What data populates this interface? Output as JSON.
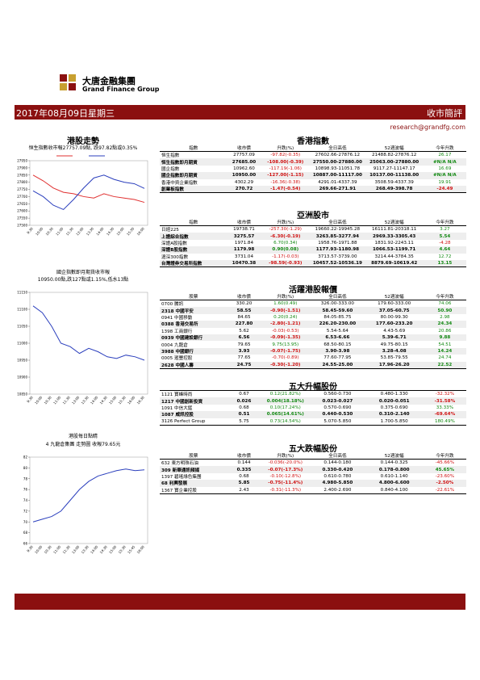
{
  "header": {
    "company_cn": "大唐金融集團",
    "company_en": "Grand Finance Group",
    "date": "2017年08月09日星期三",
    "report": "收市簡評",
    "email": "research@grandfg.com"
  },
  "left": {
    "title": "港股走勢",
    "section2": "港股每日點睛"
  },
  "chart_data": [
    {
      "type": "line",
      "title_lines": [
        "恒生指數收市報27757.09點, 跌97.82點或0.35%"
      ],
      "categories": [
        "9:30",
        "10:00",
        "10:30",
        "11:00",
        "11:30",
        "12:00",
        "13:30",
        "14:00",
        "14:30",
        "15:00",
        "15:30",
        "16:00"
      ],
      "series": [
        {
          "color": "#e03030",
          "values": [
            27850,
            27810,
            27760,
            27730,
            27720,
            27700,
            27690,
            27720,
            27700,
            27690,
            27680,
            27660
          ]
        },
        {
          "color": "#2b3fbd",
          "values": [
            27740,
            27700,
            27640,
            27610,
            27680,
            27760,
            27830,
            27850,
            27820,
            27800,
            27790,
            27757
          ]
        }
      ],
      "ylim": [
        27500,
        27950
      ],
      "yticks": [
        27500,
        27550,
        27600,
        27650,
        27700,
        27750,
        27800,
        27850,
        27900,
        27950
      ]
    },
    {
      "type": "line",
      "title_lines": [
        "國企指數即月期貨收市報",
        "10950.00點,跌127點或1.15%,低水13點"
      ],
      "categories": [
        "9:30",
        "10:00",
        "10:30",
        "11:00",
        "11:30",
        "13:00",
        "13:30",
        "14:00",
        "14:30",
        "15:00",
        "15:30",
        "16:00",
        "16:30"
      ],
      "series": [
        {
          "color": "#2b3fbd",
          "values": [
            11110,
            11090,
            11050,
            11000,
            10990,
            10970,
            10985,
            10975,
            10960,
            10955,
            10965,
            10960,
            10950
          ]
        }
      ],
      "ylim": [
        10850,
        11150
      ],
      "yticks": [
        10850,
        10900,
        10950,
        11000,
        11050,
        11100,
        11150
      ]
    },
    {
      "type": "line",
      "title_lines": [
        "4 九龍倉集團 走勢圖 收報79.65元"
      ],
      "categories": [
        "9:30",
        "10:00",
        "10:30",
        "11:00",
        "11:30",
        "13:00",
        "13:30",
        "14:00",
        "14:30",
        "15:00",
        "15:30",
        "15:45",
        "16:00"
      ],
      "series": [
        {
          "color": "#2b3fbd",
          "values": [
            70,
            70.5,
            71,
            72,
            74,
            76,
            77.5,
            78.5,
            79,
            79.5,
            79.8,
            79.5,
            79.65
          ]
        }
      ],
      "ylim": [
        66,
        82
      ],
      "yticks": [
        66,
        68,
        70,
        72,
        74,
        76,
        78,
        80,
        82
      ]
    }
  ],
  "tables": [
    {
      "title": "香港指數",
      "headers": [
        "指數",
        "收市價",
        "升跌(%)",
        "全日高低",
        "52週波幅",
        "今年升跌"
      ],
      "rows": [
        [
          "恒生指數",
          "27757.09",
          "-97.82(-0.35)",
          "27602.66-27876.12",
          "21488.82-27876.12",
          "26.17"
        ],
        [
          "恒生指數即月期貨",
          "27685.00",
          "-108.00(-0.39)",
          "27550.00-27880.00",
          "25063.00-27880.00",
          "#N/A N/A"
        ],
        [
          "國企指數",
          "10962.60",
          "-117.19(-1.06)",
          "10898.93-11051.78",
          "9117.27-11147.17",
          "16.69"
        ],
        [
          "國企指數即月期貨",
          "10950.00",
          "-127.00(-1.15)",
          "10887.00-11117.00",
          "10137.00-11138.00",
          "#N/A N/A"
        ],
        [
          "香港中資企業指數",
          "4302.29",
          "-16.36(-0.38)",
          "4291.01-4337.39",
          "3508.59-4337.39",
          "19.91"
        ],
        [
          "創業板指數",
          "270.72",
          "-1.47(-0.54)",
          "269.66-271.91",
          "268.49-398.78",
          "-24.49"
        ]
      ]
    },
    {
      "title": "亞洲股市",
      "headers": [
        "指數",
        "收市價",
        "升跌(%)",
        "全日高低",
        "52週波幅",
        "今年升跌"
      ],
      "rows": [
        [
          "日經225",
          "19738.71",
          "-257.30(-1.29)",
          "19660.22-19945.28",
          "16111.81-20318.11",
          "3.27"
        ],
        [
          "上證綜合指數",
          "3275.57",
          "-6.30(-0.19)",
          "3263.85-3277.94",
          "2969.33-3305.43",
          "5.54"
        ],
        [
          "深證A股指數",
          "1971.84",
          "6.70(0.34)",
          "1958.76-1971.88",
          "1831.92-2243.11",
          "-4.28"
        ],
        [
          "深證B股指數",
          "1179.98",
          "0.90(0.08)",
          "1177.93-1180.98",
          "1066.53-1199.71",
          "4.64"
        ],
        [
          "滬深300指數",
          "3731.04",
          "-1.17(-0.03)",
          "3713.57-3739.00",
          "3214.44-3784.35",
          "12.72"
        ],
        [
          "台灣證券交易所指數",
          "10470.38",
          "-98.59(-0.93)",
          "10457.52-10536.19",
          "8879.69-10619.42",
          "13.15"
        ]
      ]
    },
    {
      "title": "活躍港股報價",
      "headers": [
        "股票",
        "收市價",
        "升跌(%)",
        "全日高低",
        "52週波幅",
        "今年升跌"
      ],
      "rows": [
        [
          "0700 騰訊",
          "330.20",
          "1.60(0.49)",
          "326.00-333.00",
          "179.60-333.00",
          "74.06"
        ],
        [
          "2318 中國平安",
          "58.55",
          "-0.90(-1.51)",
          "58.45-59.60",
          "37.05-60.75",
          "50.90"
        ],
        [
          "0941 中國移動",
          "84.65",
          "0.20(0.24)",
          "84.05-85.75",
          "80.00-99.30",
          "2.98"
        ],
        [
          "0388 香港交易所",
          "227.80",
          "-2.80(-1.21)",
          "226.20-230.00",
          "177.60-233.20",
          "24.34"
        ],
        [
          "1398 工商銀行",
          "5.62",
          "-0.03(-0.53)",
          "5.54-5.64",
          "4.43-5.69",
          "20.86"
        ],
        [
          "0939 中國建設銀行",
          "6.56",
          "-0.09(-1.35)",
          "6.53-6.66",
          "5.39-6.71",
          "9.88"
        ],
        [
          "0004 九龍倉",
          "79.65",
          "9.75(13.95)",
          "68.50-80.15",
          "49.75-80.15",
          "54.51"
        ],
        [
          "3988 中國銀行",
          "3.93",
          "-0.07(-1.75)",
          "3.90-3.98",
          "3.28-4.08",
          "14.24"
        ],
        [
          "0005 滙豐控股",
          "77.65",
          "-0.70(-0.89)",
          "77.60-77.95",
          "53.85-79.55",
          "24.74"
        ],
        [
          "2628 中國人壽",
          "24.75",
          "-0.30(-1.20)",
          "24.55-25.00",
          "17.96-26.20",
          "22.52"
        ]
      ]
    },
    {
      "title": "五大升幅股份",
      "rows": [
        [
          "1121 寶峰時尚",
          "0.67",
          "0.12(21.82%)",
          "0.560-0.730",
          "0.480-1.330",
          "-32.32%"
        ],
        [
          "1217 中國創新投資",
          "0.026",
          "0.004(18.18%)",
          "0.023-0.027",
          "0.020-0.051",
          "-31.58%"
        ],
        [
          "1091 中信大錳",
          "0.68",
          "0.10(17.24%)",
          "0.570-0.690",
          "0.375-0.690",
          "33.33%"
        ],
        [
          "1087 威訊控股",
          "0.51",
          "0.065(14.61%)",
          "0.440-0.530",
          "0.310-2.140",
          "-69.64%"
        ],
        [
          "3126 Perfect Group",
          "5.75",
          "0.73(14.54%)",
          "5.070-5.850",
          "1.700-5.850",
          "180.49%"
        ]
      ]
    },
    {
      "title": "五大跌幅股份",
      "headers": [
        "股票",
        "收市價",
        "升跌(%)",
        "全日高低",
        "52週波幅",
        "今年升跌"
      ],
      "rows": [
        [
          "632 東方明珠石油",
          "0.144",
          "-0.036(-20.0%)",
          "0.144-0.180",
          "0.144-0.325",
          "-45.66%"
        ],
        [
          "309 新華通訊頻媒",
          "0.335",
          "-0.07(-17.3%)",
          "0.330-0.420",
          "0.178-0.800",
          "45.65%"
        ],
        [
          "1397 碧瑤綠色集團",
          "0.68",
          "-0.10(-12.8%)",
          "0.610-0.780",
          "0.610-1.140",
          "-23.60%"
        ],
        [
          "68 利興發展",
          "5.85",
          "-0.75(-11.4%)",
          "4.980-5.850",
          "4.800-6.600",
          "-2.50%"
        ],
        [
          "1367 寶企業控股",
          "2.43",
          "-0.31(-11.3%)",
          "2.400-2.690",
          "0.840-4.100",
          "-22.61%"
        ]
      ]
    }
  ]
}
